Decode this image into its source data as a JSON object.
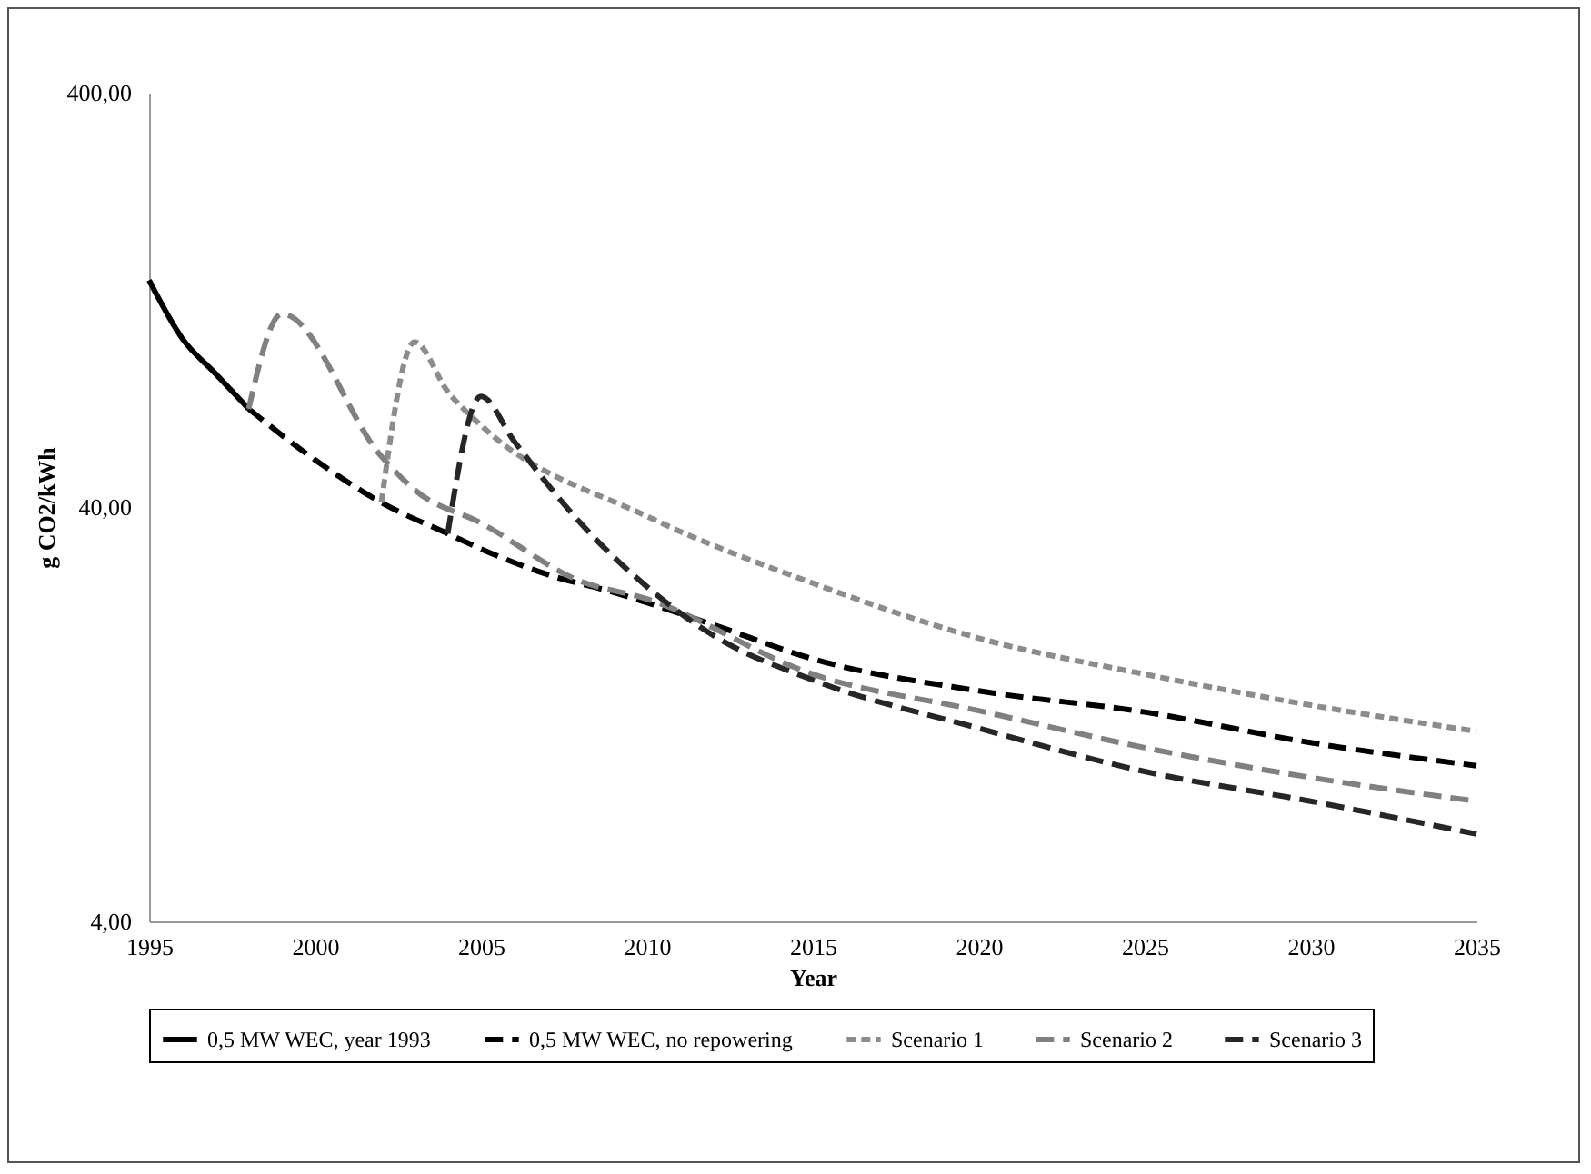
{
  "chart_data": {
    "type": "line",
    "xlabel": "Year",
    "ylabel": "g CO2/kWh",
    "log": "y",
    "xlim": [
      1995,
      2035
    ],
    "xticks": [
      1995,
      2000,
      2005,
      2010,
      2015,
      2020,
      2025,
      2030,
      2035
    ],
    "ylim": [
      4,
      400
    ],
    "yticks": [
      {
        "value": 4,
        "label": "4,00"
      },
      {
        "value": 40,
        "label": "40,00"
      },
      {
        "value": 400,
        "label": "400,00"
      }
    ],
    "grid": false,
    "legend": "bottom",
    "series": [
      {
        "name": "0,5 MW WEC, year 1993",
        "color": "#000000",
        "line_style": "solid",
        "x": [
          1995,
          1996,
          1997,
          1998
        ],
        "values": [
          141,
          102,
          84,
          69
        ]
      },
      {
        "name": "0,5 MW WEC, no repowering",
        "color": "#000000",
        "line_style": "dashed",
        "x": [
          1998,
          2000,
          2002,
          2004,
          2005,
          2007,
          2009,
          2012,
          2015,
          2020,
          2025,
          2030,
          2035
        ],
        "values": [
          69,
          52,
          41,
          34.5,
          31.7,
          27.5,
          24.9,
          20.8,
          17.2,
          14.4,
          12.8,
          10.8,
          9.5
        ]
      },
      {
        "name": "Scenario 1",
        "color": "#8c8c8c",
        "line_style": "dotted",
        "x": [
          2002,
          2003,
          2004,
          2005,
          2010,
          2015,
          2020,
          2025,
          2030,
          2035
        ],
        "values": [
          41,
          100,
          76,
          63,
          38,
          26.2,
          19.3,
          15.8,
          13.3,
          11.5
        ]
      },
      {
        "name": "Scenario 2",
        "color": "#808080",
        "line_style": "dashed",
        "x": [
          1998,
          1999,
          2002,
          2003,
          2005,
          2008,
          2010,
          2015,
          2020,
          2025,
          2030,
          2035
        ],
        "values": [
          69,
          117,
          53,
          44,
          36.6,
          26.5,
          24,
          15.8,
          12.9,
          10.5,
          8.9,
          7.8
        ]
      },
      {
        "name": "Scenario 3",
        "color": "#262626",
        "line_style": "dashed",
        "x": [
          2004,
          2005,
          2006,
          2008,
          2010,
          2012,
          2015,
          2020,
          2025,
          2030,
          2035
        ],
        "values": [
          34.5,
          74,
          57.7,
          36.6,
          25.7,
          19.6,
          15.3,
          11.7,
          9.2,
          7.8,
          6.5
        ]
      }
    ]
  }
}
